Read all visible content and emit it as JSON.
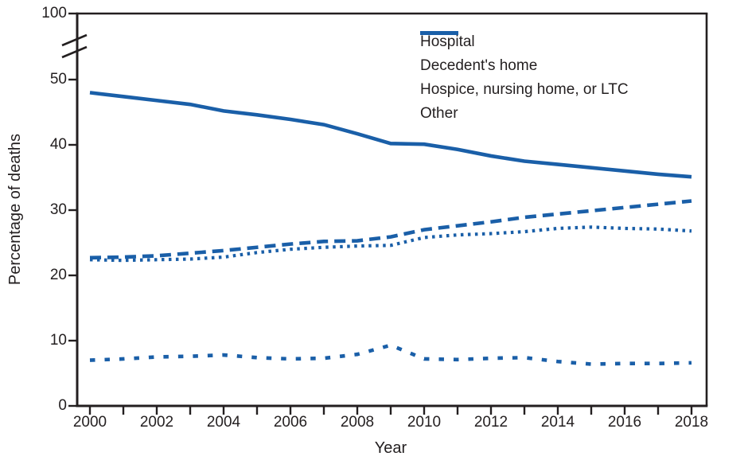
{
  "chart_data": {
    "type": "line",
    "title": "",
    "xlabel": "Year",
    "ylabel": "Percentage of deaths",
    "x": [
      2000,
      2001,
      2002,
      2003,
      2004,
      2005,
      2006,
      2007,
      2008,
      2009,
      2010,
      2011,
      2012,
      2013,
      2014,
      2015,
      2016,
      2017,
      2018
    ],
    "x_tick_label_step": 2,
    "yticks_linear": [
      0,
      10,
      20,
      30,
      40,
      50
    ],
    "ytick_break_top": 100,
    "ylim_linear": [
      0,
      55
    ],
    "axis_break": true,
    "grid": false,
    "legend_position": "top-right-inside",
    "line_color": "#1a5fa8",
    "axis_color": "#231f20",
    "series": [
      {
        "name": "Hospital",
        "style": "solid",
        "values": [
          48.0,
          47.4,
          46.8,
          46.2,
          45.2,
          44.6,
          43.9,
          43.1,
          41.7,
          40.2,
          40.1,
          39.3,
          38.3,
          37.5,
          37.0,
          36.5,
          36.0,
          35.5,
          35.1
        ]
      },
      {
        "name": "Decedent's home",
        "style": "long-dash",
        "values": [
          22.7,
          22.8,
          23.0,
          23.4,
          23.8,
          24.3,
          24.8,
          25.2,
          25.3,
          25.9,
          27.0,
          27.6,
          28.2,
          28.9,
          29.4,
          29.9,
          30.4,
          30.9,
          31.4
        ]
      },
      {
        "name": "Hospice, nursing home, or LTC",
        "style": "dotted",
        "values": [
          22.4,
          22.3,
          22.4,
          22.5,
          22.8,
          23.5,
          24.0,
          24.3,
          24.5,
          24.6,
          25.8,
          26.2,
          26.4,
          26.7,
          27.2,
          27.4,
          27.2,
          27.1,
          26.8
        ]
      },
      {
        "name": "Other",
        "style": "short-dash",
        "values": [
          7.0,
          7.2,
          7.5,
          7.6,
          7.8,
          7.4,
          7.2,
          7.3,
          7.9,
          9.3,
          7.2,
          7.1,
          7.3,
          7.4,
          6.8,
          6.4,
          6.5,
          6.5,
          6.6
        ]
      }
    ]
  }
}
